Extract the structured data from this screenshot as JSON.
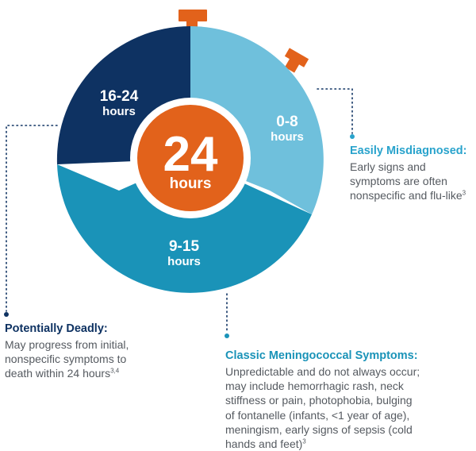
{
  "colors": {
    "dark_navy": "#0e3262",
    "light_blue": "#6fc0dc",
    "mid_blue": "#1a93b8",
    "orange": "#e2621b",
    "title_orange_blue": "#29a3cc",
    "title_navy": "#0e3262",
    "title_mid": "#1a93b8",
    "body_text": "#555a60"
  },
  "center": {
    "number": "24",
    "unit": "hours"
  },
  "segments": [
    {
      "range": "16-24",
      "unit": "hours"
    },
    {
      "range": "0-8",
      "unit": "hours"
    },
    {
      "range": "9-15",
      "unit": "hours"
    }
  ],
  "notes": {
    "easily": {
      "title": "Easily Misdiagnosed:",
      "lines": [
        "Early signs and",
        "symptoms are often",
        "nonspecific and flu-like"
      ],
      "sup": "3"
    },
    "deadly": {
      "title": "Potentially Deadly:",
      "lines": [
        "May progress from initial,",
        "nonspecific symptoms to",
        "death within 24 hours"
      ],
      "sup": "3,4"
    },
    "classic": {
      "title": "Classic Meningococcal Symptoms:",
      "lines": [
        "Unpredictable and do not always occur;",
        "may include hemorrhagic rash, neck",
        "stiffness or pain, photophobia, bulging",
        "of fontanelle (infants, <1 year of age),",
        "meningism, early signs of sepsis (cold",
        "hands and feet)"
      ],
      "sup": "3"
    }
  }
}
